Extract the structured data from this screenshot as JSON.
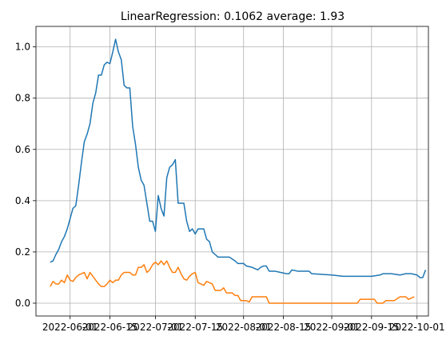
{
  "chart_data": {
    "type": "line",
    "title": "LinearRegression: 0.1062 average: 1.93",
    "xlabel": "",
    "ylabel": "",
    "grid": true,
    "x_ticks": [
      "2022-06-01",
      "2022-06-15",
      "2022-07-01",
      "2022-07-15",
      "2022-08-01",
      "2022-08-15",
      "2022-09-01",
      "2022-09-15",
      "2022-10-01"
    ],
    "y_ticks": [
      "0.0",
      "0.2",
      "0.4",
      "0.6",
      "0.8",
      "1.0"
    ],
    "xlim": [
      "2022-05-20",
      "2022-10-05"
    ],
    "ylim": [
      -0.05,
      1.08
    ],
    "series": [
      {
        "color": "#1f77b4",
        "points": [
          [
            "2022-05-25",
            0.16
          ],
          [
            "2022-05-26",
            0.165
          ],
          [
            "2022-05-27",
            0.19
          ],
          [
            "2022-05-28",
            0.21
          ],
          [
            "2022-05-29",
            0.24
          ],
          [
            "2022-05-30",
            0.26
          ],
          [
            "2022-05-31",
            0.29
          ],
          [
            "2022-06-01",
            0.33
          ],
          [
            "2022-06-02",
            0.37
          ],
          [
            "2022-06-03",
            0.38
          ],
          [
            "2022-06-04",
            0.46
          ],
          [
            "2022-06-05",
            0.55
          ],
          [
            "2022-06-06",
            0.63
          ],
          [
            "2022-06-07",
            0.66
          ],
          [
            "2022-06-08",
            0.7
          ],
          [
            "2022-06-09",
            0.78
          ],
          [
            "2022-06-10",
            0.82
          ],
          [
            "2022-06-11",
            0.89
          ],
          [
            "2022-06-12",
            0.89
          ],
          [
            "2022-06-13",
            0.93
          ],
          [
            "2022-06-14",
            0.94
          ],
          [
            "2022-06-15",
            0.935
          ],
          [
            "2022-06-16",
            0.98
          ],
          [
            "2022-06-17",
            1.03
          ],
          [
            "2022-06-18",
            0.98
          ],
          [
            "2022-06-19",
            0.95
          ],
          [
            "2022-06-20",
            0.85
          ],
          [
            "2022-06-21",
            0.84
          ],
          [
            "2022-06-22",
            0.84
          ],
          [
            "2022-06-23",
            0.69
          ],
          [
            "2022-06-24",
            0.62
          ],
          [
            "2022-06-25",
            0.53
          ],
          [
            "2022-06-26",
            0.48
          ],
          [
            "2022-06-27",
            0.46
          ],
          [
            "2022-06-28",
            0.39
          ],
          [
            "2022-06-29",
            0.32
          ],
          [
            "2022-06-30",
            0.32
          ],
          [
            "2022-07-01",
            0.28
          ],
          [
            "2022-07-02",
            0.42
          ],
          [
            "2022-07-03",
            0.37
          ],
          [
            "2022-07-04",
            0.34
          ],
          [
            "2022-07-05",
            0.49
          ],
          [
            "2022-07-06",
            0.53
          ],
          [
            "2022-07-07",
            0.54
          ],
          [
            "2022-07-08",
            0.56
          ],
          [
            "2022-07-09",
            0.39
          ],
          [
            "2022-07-10",
            0.39
          ],
          [
            "2022-07-11",
            0.39
          ],
          [
            "2022-07-12",
            0.32
          ],
          [
            "2022-07-13",
            0.28
          ],
          [
            "2022-07-14",
            0.29
          ],
          [
            "2022-07-15",
            0.27
          ],
          [
            "2022-07-16",
            0.29
          ],
          [
            "2022-07-17",
            0.29
          ],
          [
            "2022-07-18",
            0.29
          ],
          [
            "2022-07-19",
            0.25
          ],
          [
            "2022-07-20",
            0.24
          ],
          [
            "2022-07-21",
            0.2
          ],
          [
            "2022-07-22",
            0.19
          ],
          [
            "2022-07-23",
            0.18
          ],
          [
            "2022-07-25",
            0.18
          ],
          [
            "2022-07-27",
            0.18
          ],
          [
            "2022-07-29",
            0.165
          ],
          [
            "2022-07-30",
            0.155
          ],
          [
            "2022-08-01",
            0.155
          ],
          [
            "2022-08-02",
            0.145
          ],
          [
            "2022-08-04",
            0.14
          ],
          [
            "2022-08-06",
            0.13
          ],
          [
            "2022-08-07",
            0.14
          ],
          [
            "2022-08-08",
            0.145
          ],
          [
            "2022-08-09",
            0.145
          ],
          [
            "2022-08-10",
            0.125
          ],
          [
            "2022-08-12",
            0.125
          ],
          [
            "2022-08-14",
            0.12
          ],
          [
            "2022-08-16",
            0.115
          ],
          [
            "2022-08-17",
            0.115
          ],
          [
            "2022-08-18",
            0.13
          ],
          [
            "2022-08-20",
            0.125
          ],
          [
            "2022-08-24",
            0.125
          ],
          [
            "2022-08-25",
            0.115
          ],
          [
            "2022-09-01",
            0.11
          ],
          [
            "2022-09-05",
            0.105
          ],
          [
            "2022-09-15",
            0.105
          ],
          [
            "2022-09-18",
            0.11
          ],
          [
            "2022-09-19",
            0.115
          ],
          [
            "2022-09-22",
            0.115
          ],
          [
            "2022-09-25",
            0.11
          ],
          [
            "2022-09-27",
            0.115
          ],
          [
            "2022-09-29",
            0.115
          ],
          [
            "2022-10-01",
            0.11
          ],
          [
            "2022-10-02",
            0.1
          ],
          [
            "2022-10-03",
            0.1
          ],
          [
            "2022-10-04",
            0.13
          ]
        ]
      },
      {
        "color": "#ff7f0e",
        "points": [
          [
            "2022-05-25",
            0.065
          ],
          [
            "2022-05-26",
            0.085
          ],
          [
            "2022-05-27",
            0.075
          ],
          [
            "2022-05-28",
            0.075
          ],
          [
            "2022-05-29",
            0.09
          ],
          [
            "2022-05-30",
            0.08
          ],
          [
            "2022-05-31",
            0.11
          ],
          [
            "2022-06-01",
            0.09
          ],
          [
            "2022-06-02",
            0.085
          ],
          [
            "2022-06-03",
            0.1
          ],
          [
            "2022-06-04",
            0.11
          ],
          [
            "2022-06-05",
            0.115
          ],
          [
            "2022-06-06",
            0.12
          ],
          [
            "2022-06-07",
            0.095
          ],
          [
            "2022-06-08",
            0.12
          ],
          [
            "2022-06-09",
            0.105
          ],
          [
            "2022-06-10",
            0.09
          ],
          [
            "2022-06-11",
            0.075
          ],
          [
            "2022-06-12",
            0.065
          ],
          [
            "2022-06-13",
            0.065
          ],
          [
            "2022-06-14",
            0.075
          ],
          [
            "2022-06-15",
            0.09
          ],
          [
            "2022-06-16",
            0.08
          ],
          [
            "2022-06-17",
            0.09
          ],
          [
            "2022-06-18",
            0.09
          ],
          [
            "2022-06-19",
            0.11
          ],
          [
            "2022-06-20",
            0.12
          ],
          [
            "2022-06-21",
            0.12
          ],
          [
            "2022-06-22",
            0.12
          ],
          [
            "2022-06-23",
            0.11
          ],
          [
            "2022-06-24",
            0.11
          ],
          [
            "2022-06-25",
            0.14
          ],
          [
            "2022-06-26",
            0.14
          ],
          [
            "2022-06-27",
            0.15
          ],
          [
            "2022-06-28",
            0.12
          ],
          [
            "2022-06-29",
            0.13
          ],
          [
            "2022-06-30",
            0.15
          ],
          [
            "2022-07-01",
            0.16
          ],
          [
            "2022-07-02",
            0.15
          ],
          [
            "2022-07-03",
            0.165
          ],
          [
            "2022-07-04",
            0.15
          ],
          [
            "2022-07-05",
            0.165
          ],
          [
            "2022-07-06",
            0.14
          ],
          [
            "2022-07-07",
            0.12
          ],
          [
            "2022-07-08",
            0.12
          ],
          [
            "2022-07-09",
            0.14
          ],
          [
            "2022-07-10",
            0.115
          ],
          [
            "2022-07-11",
            0.095
          ],
          [
            "2022-07-12",
            0.09
          ],
          [
            "2022-07-13",
            0.105
          ],
          [
            "2022-07-14",
            0.115
          ],
          [
            "2022-07-15",
            0.12
          ],
          [
            "2022-07-16",
            0.08
          ],
          [
            "2022-07-17",
            0.075
          ],
          [
            "2022-07-18",
            0.07
          ],
          [
            "2022-07-19",
            0.085
          ],
          [
            "2022-07-20",
            0.08
          ],
          [
            "2022-07-21",
            0.075
          ],
          [
            "2022-07-22",
            0.05
          ],
          [
            "2022-07-23",
            0.05
          ],
          [
            "2022-07-24",
            0.05
          ],
          [
            "2022-07-25",
            0.06
          ],
          [
            "2022-07-26",
            0.04
          ],
          [
            "2022-07-27",
            0.04
          ],
          [
            "2022-07-28",
            0.04
          ],
          [
            "2022-07-29",
            0.03
          ],
          [
            "2022-07-30",
            0.03
          ],
          [
            "2022-07-31",
            0.01
          ],
          [
            "2022-08-01",
            0.01
          ],
          [
            "2022-08-02",
            0.01
          ],
          [
            "2022-08-03",
            0.005
          ],
          [
            "2022-08-04",
            0.025
          ],
          [
            "2022-08-06",
            0.025
          ],
          [
            "2022-08-08",
            0.025
          ],
          [
            "2022-08-09",
            0.025
          ],
          [
            "2022-08-10",
            0.0
          ],
          [
            "2022-08-20",
            0.0
          ],
          [
            "2022-09-01",
            0.0
          ],
          [
            "2022-09-10",
            0.0
          ],
          [
            "2022-09-11",
            0.015
          ],
          [
            "2022-09-14",
            0.015
          ],
          [
            "2022-09-16",
            0.015
          ],
          [
            "2022-09-17",
            0.0
          ],
          [
            "2022-09-19",
            0.0
          ],
          [
            "2022-09-20",
            0.01
          ],
          [
            "2022-09-23",
            0.01
          ],
          [
            "2022-09-25",
            0.025
          ],
          [
            "2022-09-27",
            0.025
          ],
          [
            "2022-09-28",
            0.015
          ],
          [
            "2022-09-29",
            0.02
          ],
          [
            "2022-09-30",
            0.025
          ]
        ]
      }
    ]
  }
}
